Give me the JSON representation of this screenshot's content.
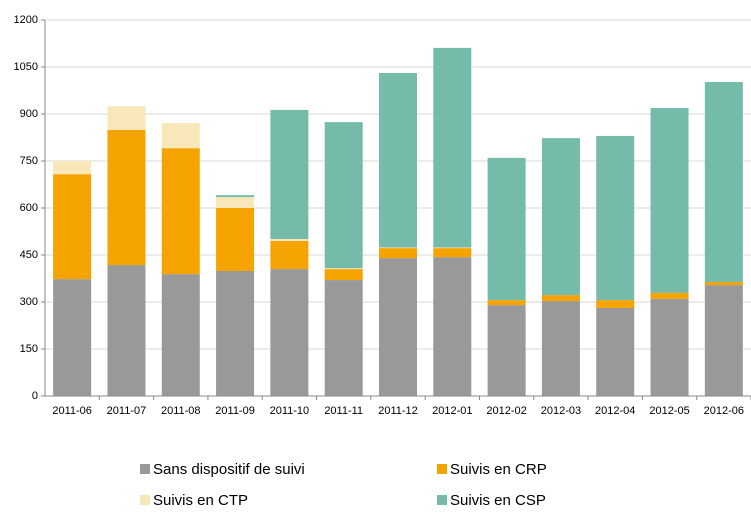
{
  "chart_data": {
    "type": "stacked_bar",
    "categories": [
      "2011-06",
      "2011-07",
      "2011-08",
      "2011-09",
      "2011-10",
      "2011-11",
      "2011-12",
      "2012-01",
      "2012-02",
      "2012-03",
      "2012-04",
      "2012-05",
      "2012-06"
    ],
    "series": [
      {
        "name": "Sans dispositif de suivi",
        "color": "#999999",
        "values": [
          373,
          418,
          389,
          399,
          405,
          370,
          440,
          443,
          290,
          303,
          281,
          310,
          354
        ]
      },
      {
        "name": "Suivis en CRP",
        "color": "#f5a300",
        "values": [
          335,
          431,
          402,
          201,
          90,
          35,
          32,
          29,
          16,
          19,
          25,
          19,
          10
        ]
      },
      {
        "name": "Suivis en CTP",
        "color": "#f7e7b9",
        "values": [
          42,
          76,
          80,
          35,
          6,
          3,
          2,
          2,
          0,
          0,
          0,
          0,
          0
        ]
      },
      {
        "name": "Suivis en CSP",
        "color": "#74bbaa",
        "values": [
          0,
          0,
          0,
          6,
          412,
          466,
          557,
          637,
          454,
          501,
          524,
          590,
          638
        ]
      }
    ],
    "ylim": [
      0,
      1200
    ],
    "yticks": [
      0,
      150,
      300,
      450,
      600,
      750,
      900,
      1050,
      1200
    ],
    "grid": true,
    "legend": "bottom"
  }
}
